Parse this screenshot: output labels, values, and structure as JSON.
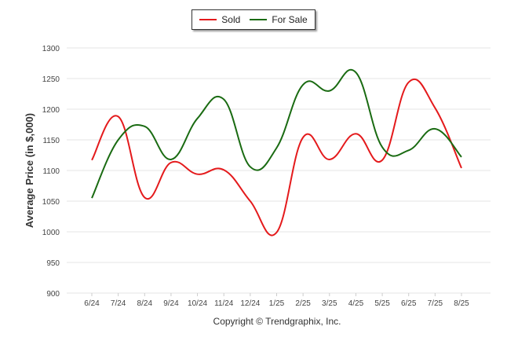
{
  "chart_data": {
    "type": "line",
    "legend_placement": "top-center",
    "categories": [
      "6/24",
      "7/24",
      "8/24",
      "9/24",
      "10/24",
      "11/24",
      "12/24",
      "1/25",
      "2/25",
      "3/25",
      "4/25",
      "5/25",
      "6/25",
      "7/25",
      "8/25"
    ],
    "ylabel": "Average Price (in $,000)",
    "ylim": [
      900,
      1300
    ],
    "yticks": [
      900,
      950,
      1000,
      1050,
      1100,
      1150,
      1200,
      1250,
      1300
    ],
    "grid": true,
    "series": [
      {
        "name": "Sold",
        "color": "#e41a1c",
        "values": [
          1117,
          1188,
          1056,
          1113,
          1094,
          1101,
          1050,
          999,
          1154,
          1118,
          1160,
          1117,
          1244,
          1202,
          1104
        ]
      },
      {
        "name": "For Sale",
        "color": "#1a6b12",
        "values": [
          1055,
          1150,
          1172,
          1118,
          1185,
          1216,
          1106,
          1137,
          1240,
          1230,
          1260,
          1138,
          1133,
          1168,
          1122
        ]
      }
    ]
  },
  "footer": "Copyright © Trendgraphix, Inc."
}
